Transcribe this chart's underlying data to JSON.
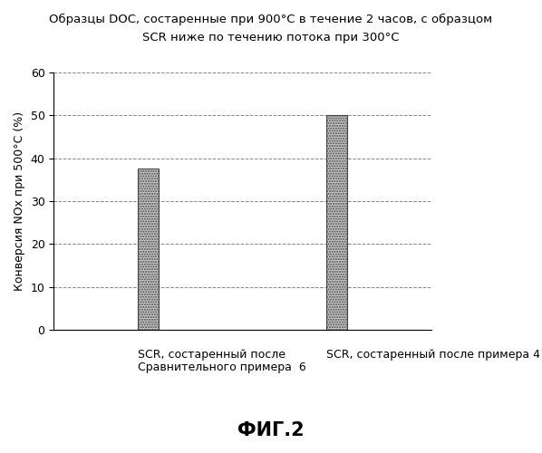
{
  "title_line1": "Образцы DOC, состаренные при 900°C в течение 2 часов, с образцом",
  "title_line2": "SCR ниже по течению потока при 300°C",
  "ylabel": "Конверсия NOx при 500°C (%)",
  "cat1_line1": "SCR, состаренный после",
  "cat1_line2": "Сравнительного примера  6",
  "cat2": "SCR, состаренный после примера 4",
  "values": [
    37.5,
    50.0
  ],
  "ylim": [
    0,
    60
  ],
  "yticks": [
    0,
    10,
    20,
    30,
    40,
    50,
    60
  ],
  "bar_color": "#c8c8c8",
  "bar_edge_color": "#444444",
  "bar_width": 0.22,
  "bar_positions": [
    1,
    3
  ],
  "xlim": [
    0,
    4
  ],
  "fig_caption": "ФИГ.2",
  "background_color": "#ffffff",
  "grid_color": "#888888",
  "title_fontsize": 9.5,
  "axis_fontsize": 9,
  "tick_fontsize": 9,
  "caption_fontsize": 15,
  "caption_fontweight": "bold"
}
